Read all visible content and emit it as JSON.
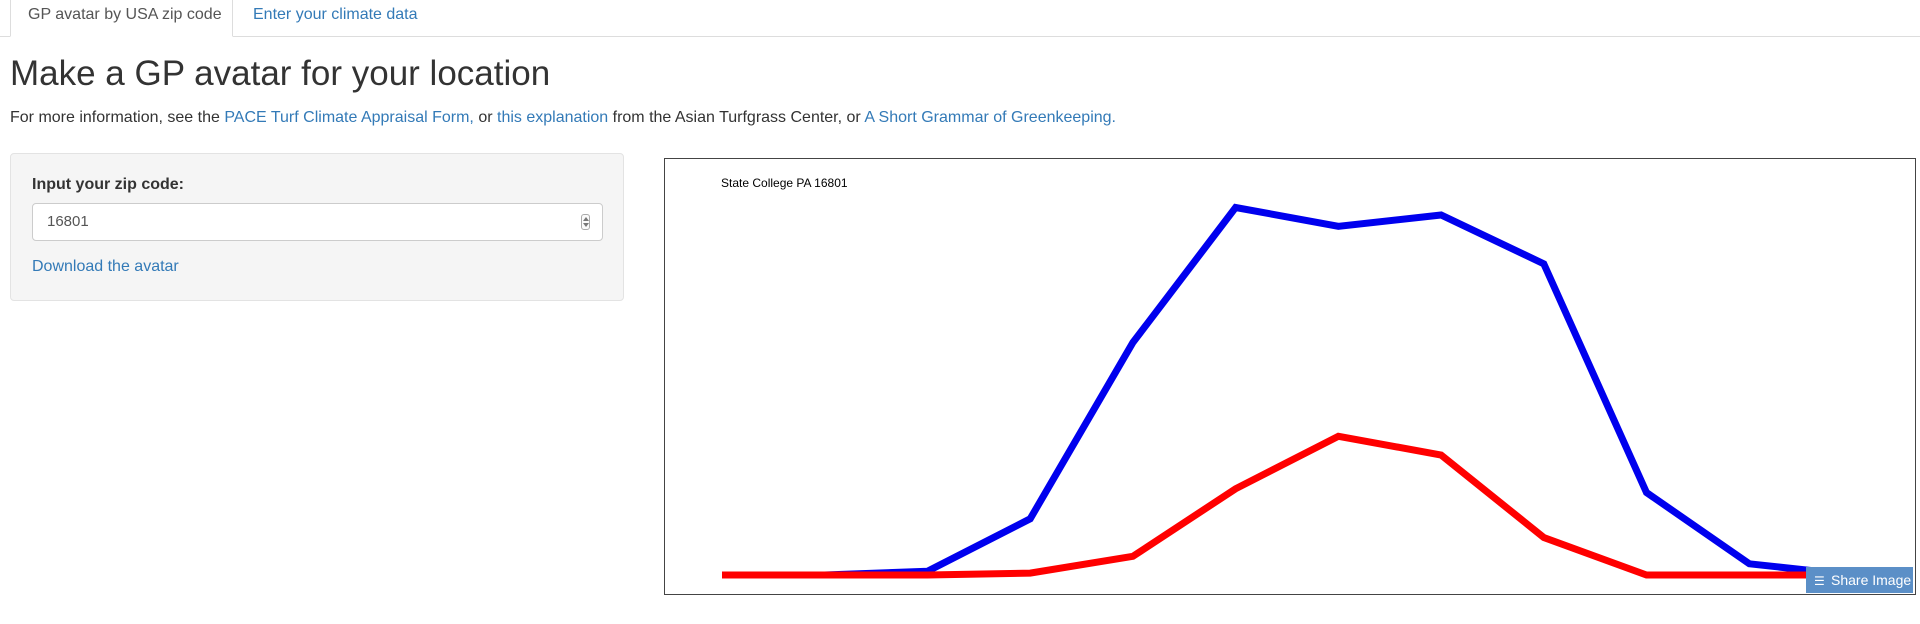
{
  "tabs": [
    {
      "label": "GP avatar by USA zip code",
      "active": true
    },
    {
      "label": "Enter your climate data",
      "active": false
    }
  ],
  "page_title": "Make a GP avatar for your location",
  "info": {
    "prefix": "For more information, see the ",
    "link1": "PACE Turf Climate Appraisal Form,",
    "sep1": " or ",
    "link2": "this explanation",
    "sep2": " from the Asian Turfgrass Center, or ",
    "link3": "A Short Grammar of Greenkeeping."
  },
  "panel": {
    "zip_label": "Input your zip code:",
    "zip_value": "16801",
    "download_label": "Download the avatar"
  },
  "share_button": {
    "label": "Share Image",
    "icon": "layers-icon"
  },
  "chart_data": {
    "type": "line",
    "title": "State College PA 16801",
    "xlabel": "",
    "ylabel": "",
    "x": [
      1,
      2,
      3,
      4,
      5,
      6,
      7,
      8,
      9,
      10,
      11,
      12
    ],
    "ylim": [
      0,
      1
    ],
    "grid": false,
    "series": [
      {
        "color": "#0000ee",
        "values": [
          0,
          0,
          0.01,
          0.15,
          0.62,
          0.98,
          0.93,
          0.96,
          0.83,
          0.22,
          0.03,
          0
        ]
      },
      {
        "color": "#ff0000",
        "values": [
          0,
          0,
          0,
          0.005,
          0.05,
          0.23,
          0.37,
          0.32,
          0.1,
          0,
          0,
          0
        ]
      }
    ]
  }
}
